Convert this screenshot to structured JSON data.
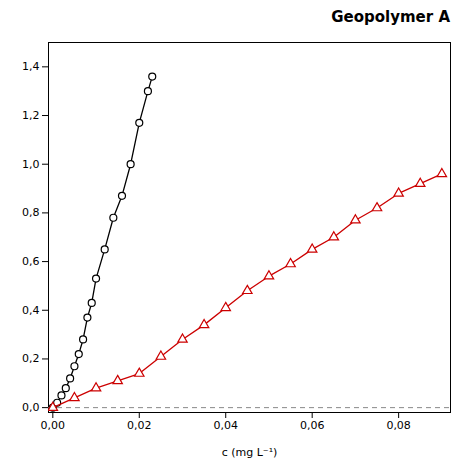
{
  "chart_data": {
    "type": "line",
    "title": "Geopolymer A",
    "xlabel": "c (mg L⁻¹)",
    "xlim": [
      -0.001,
      0.092
    ],
    "ylim": [
      -0.02,
      1.5
    ],
    "xticks": [
      {
        "value": 0.0,
        "label": "0,00"
      },
      {
        "value": 0.02,
        "label": "0,02"
      },
      {
        "value": 0.04,
        "label": "0,04"
      },
      {
        "value": 0.06,
        "label": "0,06"
      },
      {
        "value": 0.08,
        "label": "0,08"
      }
    ],
    "yticks": [
      {
        "value": 0.0,
        "label": "0,0"
      },
      {
        "value": 0.2,
        "label": "0,2"
      },
      {
        "value": 0.4,
        "label": "0,4"
      },
      {
        "value": 0.6,
        "label": "0,6"
      },
      {
        "value": 0.8,
        "label": "0,8"
      },
      {
        "value": 1.0,
        "label": "1,0"
      },
      {
        "value": 1.2,
        "label": "1,2"
      },
      {
        "value": 1.4,
        "label": "1,4"
      }
    ],
    "series": [
      {
        "color": "#000000",
        "marker": "circle",
        "x": [
          0.0,
          0.001,
          0.002,
          0.003,
          0.004,
          0.005,
          0.006,
          0.007,
          0.008,
          0.009,
          0.01,
          0.012,
          0.014,
          0.016,
          0.018,
          0.02,
          0.022,
          0.023
        ],
        "values": [
          0.0,
          0.02,
          0.05,
          0.08,
          0.12,
          0.17,
          0.22,
          0.28,
          0.37,
          0.43,
          0.53,
          0.65,
          0.78,
          0.87,
          1.0,
          1.17,
          1.3,
          1.36
        ]
      },
      {
        "color": "#cc0000",
        "marker": "triangle",
        "x": [
          0.0,
          0.005,
          0.01,
          0.015,
          0.02,
          0.025,
          0.03,
          0.035,
          0.04,
          0.045,
          0.05,
          0.055,
          0.06,
          0.065,
          0.07,
          0.075,
          0.08,
          0.085,
          0.09
        ],
        "values": [
          0.0,
          0.04,
          0.08,
          0.11,
          0.14,
          0.21,
          0.28,
          0.34,
          0.41,
          0.48,
          0.54,
          0.59,
          0.65,
          0.7,
          0.77,
          0.82,
          0.88,
          0.92,
          0.96
        ]
      }
    ],
    "reference_lines": [
      {
        "y": 0,
        "line_style": "dashed",
        "color": "#888888"
      }
    ],
    "grid": false
  }
}
